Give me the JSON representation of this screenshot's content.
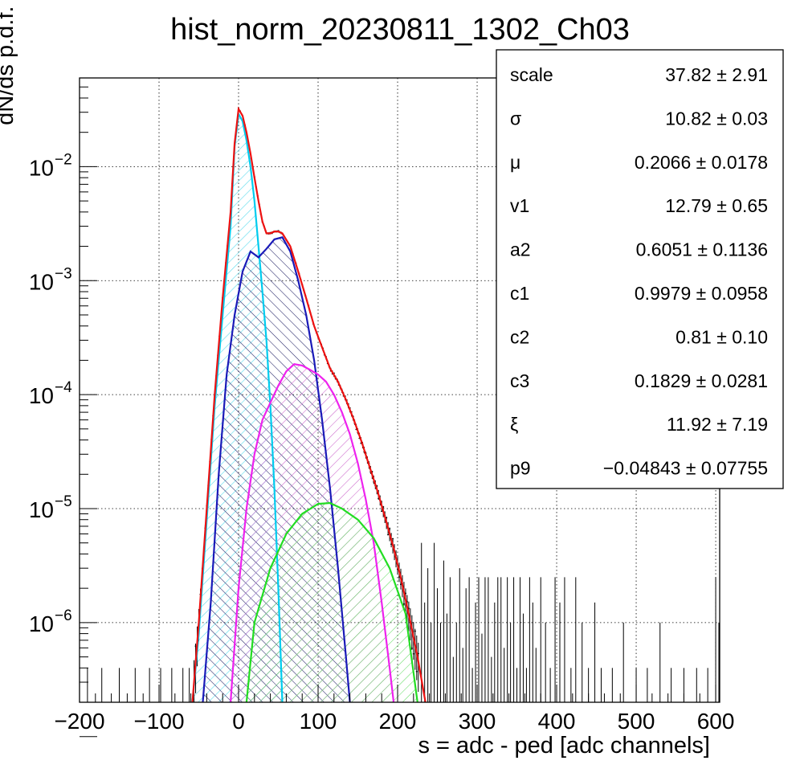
{
  "chart_data": {
    "type": "histogram",
    "title": "hist_norm_20230811_1302_Ch03",
    "xlabel": "s = adc - ped [adc channels]",
    "ylabel": "dN/ds p.d.f. [a.u.]",
    "xlim": [
      -200,
      605
    ],
    "ylim": [
      2e-07,
      0.06
    ],
    "yscale": "log",
    "grid": true,
    "x_ticks": [
      {
        "value": -200,
        "label": "−200"
      },
      {
        "value": -100,
        "label": "−100"
      },
      {
        "value": 0,
        "label": "0"
      },
      {
        "value": 100,
        "label": "100"
      },
      {
        "value": 200,
        "label": "200"
      },
      {
        "value": 300,
        "label": "300"
      },
      {
        "value": 400,
        "label": "400"
      },
      {
        "value": 500,
        "label": "500"
      },
      {
        "value": 600,
        "label": "600"
      }
    ],
    "y_ticks": [
      {
        "value": 0.01,
        "base": "10",
        "exp": "−2"
      },
      {
        "value": 0.001,
        "base": "10",
        "exp": "−3"
      },
      {
        "value": 0.0001,
        "base": "10",
        "exp": "−4"
      },
      {
        "value": 1e-05,
        "base": "10",
        "exp": "−5"
      },
      {
        "value": 1e-06,
        "base": "10",
        "exp": "−6"
      }
    ],
    "components": [
      {
        "color": "#00ccee",
        "fill_color": "#66ddee",
        "hatch": "diag-down",
        "peak": 0.029,
        "points": [
          [
            -58,
            2e-07
          ],
          [
            -50,
            8e-07
          ],
          [
            -40,
            8e-06
          ],
          [
            -30,
            8e-05
          ],
          [
            -20,
            0.0005
          ],
          [
            -10,
            0.003
          ],
          [
            -5,
            0.015
          ],
          [
            0,
            0.029
          ],
          [
            5,
            0.025
          ],
          [
            10,
            0.017
          ],
          [
            15,
            0.01
          ],
          [
            20,
            0.005
          ],
          [
            25,
            0.002
          ],
          [
            30,
            0.0008
          ],
          [
            35,
            0.0003
          ],
          [
            40,
            8e-05
          ],
          [
            45,
            1.5e-05
          ],
          [
            50,
            2e-06
          ],
          [
            55,
            2e-07
          ]
        ]
      },
      {
        "color": "#1a1ab8",
        "fill_color": "#222266",
        "hatch": "diag-up",
        "peak": 0.0024,
        "points": [
          [
            -45,
            2e-07
          ],
          [
            -35,
            1.5e-06
          ],
          [
            -25,
            2e-05
          ],
          [
            -15,
            0.00015
          ],
          [
            -5,
            0.0005
          ],
          [
            5,
            0.0012
          ],
          [
            15,
            0.0018
          ],
          [
            25,
            0.0016
          ],
          [
            35,
            0.0019
          ],
          [
            45,
            0.0023
          ],
          [
            55,
            0.0024
          ],
          [
            65,
            0.0018
          ],
          [
            75,
            0.001
          ],
          [
            85,
            0.0005
          ],
          [
            95,
            0.0002
          ],
          [
            105,
            6e-05
          ],
          [
            115,
            1.5e-05
          ],
          [
            125,
            3e-06
          ],
          [
            135,
            5e-07
          ],
          [
            140,
            2e-07
          ]
        ]
      },
      {
        "color": "#ee22ee",
        "fill_color": "#cc66cc",
        "hatch": "diag-down",
        "peak": 0.000185,
        "points": [
          [
            -10,
            2e-07
          ],
          [
            0,
            2e-06
          ],
          [
            10,
            1e-05
          ],
          [
            20,
            3e-05
          ],
          [
            30,
            6e-05
          ],
          [
            40,
            8.5e-05
          ],
          [
            50,
            0.00012
          ],
          [
            60,
            0.00016
          ],
          [
            70,
            0.000185
          ],
          [
            80,
            0.00018
          ],
          [
            90,
            0.000165
          ],
          [
            100,
            0.00015
          ],
          [
            110,
            0.00013
          ],
          [
            120,
            0.0001
          ],
          [
            130,
            7e-05
          ],
          [
            140,
            4.5e-05
          ],
          [
            150,
            2.5e-05
          ],
          [
            160,
            1.2e-05
          ],
          [
            170,
            5e-06
          ],
          [
            180,
            1.5e-06
          ],
          [
            190,
            4e-07
          ],
          [
            195,
            2e-07
          ]
        ]
      },
      {
        "color": "#22dd22",
        "fill_color": "#66dd66",
        "hatch": "diag-down",
        "peak": 1.12e-05,
        "points": [
          [
            10,
            2e-07
          ],
          [
            20,
            1e-06
          ],
          [
            40,
            3e-06
          ],
          [
            60,
            6e-06
          ],
          [
            80,
            9e-06
          ],
          [
            100,
            1.1e-05
          ],
          [
            115,
            1.12e-05
          ],
          [
            130,
            1e-05
          ],
          [
            150,
            8e-06
          ],
          [
            170,
            5.5e-06
          ],
          [
            190,
            3e-06
          ],
          [
            210,
            1.2e-06
          ],
          [
            225,
            2e-07
          ]
        ]
      }
    ],
    "total_fit": {
      "color": "#ee1111",
      "points": [
        [
          -58,
          2e-07
        ],
        [
          -50,
          1e-06
        ],
        [
          -40,
          1e-05
        ],
        [
          -30,
          0.0001
        ],
        [
          -20,
          0.0007
        ],
        [
          -10,
          0.004
        ],
        [
          -5,
          0.016
        ],
        [
          0,
          0.032
        ],
        [
          5,
          0.028
        ],
        [
          10,
          0.02
        ],
        [
          15,
          0.013
        ],
        [
          20,
          0.008
        ],
        [
          25,
          0.005
        ],
        [
          30,
          0.0033
        ],
        [
          35,
          0.0026
        ],
        [
          40,
          0.0026
        ],
        [
          45,
          0.0027
        ],
        [
          50,
          0.0027
        ],
        [
          55,
          0.0026
        ],
        [
          65,
          0.002
        ],
        [
          75,
          0.0012
        ],
        [
          85,
          0.0007
        ],
        [
          95,
          0.0004
        ],
        [
          105,
          0.00026
        ],
        [
          115,
          0.00017
        ],
        [
          125,
          0.00013
        ],
        [
          135,
          9e-05
        ],
        [
          145,
          6e-05
        ],
        [
          155,
          3.8e-05
        ],
        [
          165,
          2.3e-05
        ],
        [
          175,
          1.4e-05
        ],
        [
          185,
          8e-06
        ],
        [
          195,
          4.5e-06
        ],
        [
          205,
          2.3e-06
        ],
        [
          215,
          1.1e-06
        ],
        [
          225,
          5e-07
        ],
        [
          235,
          2e-07
        ]
      ]
    },
    "data_histogram": {
      "color": "#000000",
      "bin_width": 2,
      "sparse_bins": [
        [
          230,
          5e-06
        ],
        [
          234,
          1.5e-06
        ],
        [
          238,
          3e-06
        ],
        [
          242,
          1e-06
        ],
        [
          246,
          5e-06
        ],
        [
          250,
          2e-06
        ],
        [
          254,
          1e-06
        ],
        [
          258,
          3.5e-06
        ],
        [
          262,
          1.2e-06
        ],
        [
          266,
          2.5e-06
        ],
        [
          270,
          5e-07
        ],
        [
          274,
          1e-06
        ],
        [
          278,
          3e-06
        ],
        [
          282,
          6e-07
        ],
        [
          286,
          2e-06
        ],
        [
          290,
          2.5e-06
        ],
        [
          294,
          4e-07
        ],
        [
          298,
          1.5e-06
        ],
        [
          302,
          2.5e-06
        ],
        [
          306,
          8e-07
        ],
        [
          310,
          2.5e-06
        ],
        [
          314,
          2.5e-06
        ],
        [
          318,
          5e-07
        ],
        [
          322,
          1.5e-06
        ],
        [
          326,
          2.5e-06
        ],
        [
          330,
          2.5e-06
        ],
        [
          334,
          6e-07
        ],
        [
          338,
          2.5e-06
        ],
        [
          342,
          1e-06
        ],
        [
          346,
          2.5e-06
        ],
        [
          350,
          4e-07
        ],
        [
          354,
          2.5e-06
        ],
        [
          358,
          1.2e-06
        ],
        [
          362,
          4e-07
        ],
        [
          366,
          2.5e-06
        ],
        [
          370,
          1.5e-06
        ],
        [
          374,
          6e-07
        ],
        [
          380,
          2.5e-06
        ],
        [
          386,
          1e-06
        ],
        [
          392,
          4e-07
        ],
        [
          398,
          2.5e-06
        ],
        [
          404,
          1.5e-06
        ],
        [
          410,
          2.5e-06
        ],
        [
          418,
          4e-07
        ],
        [
          424,
          2.5e-06
        ],
        [
          432,
          1e-06
        ],
        [
          440,
          4e-07
        ],
        [
          448,
          1.5e-06
        ],
        [
          456,
          4e-07
        ],
        [
          470,
          4e-07
        ],
        [
          484,
          1e-06
        ],
        [
          500,
          4e-07
        ],
        [
          514,
          4e-07
        ],
        [
          530,
          1e-06
        ],
        [
          544,
          4e-07
        ],
        [
          560,
          4e-07
        ],
        [
          576,
          4e-07
        ],
        [
          590,
          4e-07
        ],
        [
          600,
          2.5e-06
        ],
        [
          604,
          1e-06
        ],
        [
          -190,
          4e-07
        ],
        [
          -172,
          4e-07
        ],
        [
          -150,
          4e-07
        ],
        [
          -130,
          4e-07
        ],
        [
          -112,
          4e-07
        ],
        [
          -98,
          4e-07
        ],
        [
          -84,
          4e-07
        ],
        [
          -70,
          4e-07
        ],
        [
          -62,
          4e-07
        ]
      ]
    },
    "stats_box": {
      "rows": [
        {
          "name": "scale",
          "value": "37.82",
          "error": "2.91"
        },
        {
          "name": "σ",
          "value": "10.82",
          "error": "0.03"
        },
        {
          "name": "μ",
          "value": "0.2066",
          "error": "0.0178"
        },
        {
          "name": "v1",
          "value": "12.79",
          "error": "0.65"
        },
        {
          "name": "a2",
          "value": "0.6051",
          "error": "0.1136"
        },
        {
          "name": "c1",
          "value": "0.9979",
          "error": "0.0958"
        },
        {
          "name": "c2",
          "value": "0.81",
          "error": "0.10"
        },
        {
          "name": "c3",
          "value": "0.1829",
          "error": "0.0281"
        },
        {
          "name": "ξ",
          "value": "11.92",
          "error": "7.19"
        },
        {
          "name": "p9",
          "value": "−0.04843",
          "error": "0.07755"
        }
      ]
    }
  }
}
